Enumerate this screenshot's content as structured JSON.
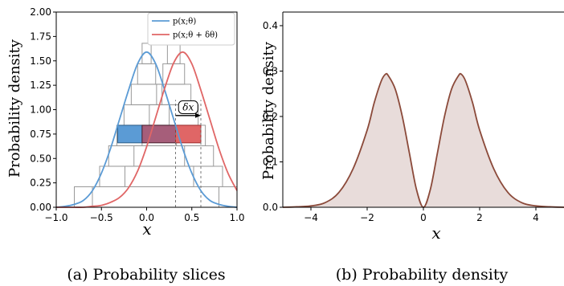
{
  "chart_data": [
    {
      "type": "line",
      "xlabel": "x",
      "ylabel": "Probability density",
      "xlim": [
        -1.0,
        1.0
      ],
      "ylim": [
        0.0,
        2.0
      ],
      "xticks": [
        "−1.0",
        "−0.5",
        "0.0",
        "0.5",
        "1.0"
      ],
      "yticks": [
        "0.00",
        "0.25",
        "0.50",
        "0.75",
        "1.00",
        "1.25",
        "1.50",
        "1.75",
        "2.00"
      ],
      "grid": false,
      "legend_position": "top-right",
      "series": [
        {
          "name": "p(x;θ)",
          "color": "#5b9bd5",
          "x": [
            -1.0,
            -0.9,
            -0.8,
            -0.7,
            -0.6,
            -0.5,
            -0.4,
            -0.3,
            -0.2,
            -0.1,
            0.0,
            0.1,
            0.2,
            0.3,
            0.4,
            0.5,
            0.6,
            0.7,
            0.8,
            0.9,
            1.0
          ],
          "y": [
            0.0,
            0.01,
            0.03,
            0.07,
            0.17,
            0.35,
            0.6,
            0.9,
            1.2,
            1.47,
            1.59,
            1.47,
            1.2,
            0.9,
            0.6,
            0.35,
            0.17,
            0.07,
            0.03,
            0.01,
            0.0
          ]
        },
        {
          "name": "p(x;θ + δθ)",
          "color": "#e06666",
          "x": [
            -1.0,
            -0.9,
            -0.8,
            -0.7,
            -0.6,
            -0.5,
            -0.4,
            -0.3,
            -0.2,
            -0.1,
            0.0,
            0.1,
            0.2,
            0.3,
            0.4,
            0.5,
            0.6,
            0.7,
            0.8,
            0.9,
            1.0
          ],
          "y": [
            0.0,
            0.0,
            0.0,
            0.0,
            0.01,
            0.02,
            0.05,
            0.1,
            0.2,
            0.37,
            0.62,
            0.92,
            1.22,
            1.48,
            1.59,
            1.47,
            1.2,
            0.9,
            0.6,
            0.35,
            0.17
          ]
        }
      ],
      "slices": [
        {
          "xmin": -0.8,
          "xmax": 0.8,
          "y0": 0.0,
          "y1": 0.21
        },
        {
          "xmin": -0.52,
          "xmax": 0.52,
          "y0": 0.21,
          "y1": 0.42
        },
        {
          "xmin": -0.42,
          "xmax": 0.42,
          "y0": 0.42,
          "y1": 0.63
        },
        {
          "xmin": -0.33,
          "xmax": 0.33,
          "y0": 0.63,
          "y1": 0.84
        },
        {
          "xmin": -0.25,
          "xmax": 0.25,
          "y0": 0.84,
          "y1": 1.05
        },
        {
          "xmin": -0.17,
          "xmax": 0.17,
          "y0": 1.05,
          "y1": 1.26
        },
        {
          "xmin": -0.1,
          "xmax": 0.1,
          "y0": 1.26,
          "y1": 1.47
        },
        {
          "xmin": -0.05,
          "xmax": 0.05,
          "y0": 1.47,
          "y1": 1.68
        },
        {
          "xmin": -0.6,
          "xmax": 1.0,
          "y0": 0.0,
          "y1": 0.21
        },
        {
          "xmin": -0.24,
          "xmax": 0.84,
          "y0": 0.21,
          "y1": 0.42
        },
        {
          "xmin": -0.14,
          "xmax": 0.74,
          "y0": 0.42,
          "y1": 0.63
        },
        {
          "xmin": -0.05,
          "xmax": 0.65,
          "y0": 0.63,
          "y1": 0.84
        },
        {
          "xmin": 0.03,
          "xmax": 0.57,
          "y0": 0.84,
          "y1": 1.05
        },
        {
          "xmin": 0.11,
          "xmax": 0.49,
          "y0": 1.05,
          "y1": 1.26
        },
        {
          "xmin": 0.18,
          "xmax": 0.42,
          "y0": 1.26,
          "y1": 1.47
        },
        {
          "xmin": 0.23,
          "xmax": 0.37,
          "y0": 1.47,
          "y1": 1.68
        }
      ],
      "highlight": {
        "y0": 0.66,
        "y1": 0.84,
        "blue": {
          "xmin": -0.32,
          "xmax": -0.05
        },
        "overlap": {
          "xmin": -0.05,
          "xmax": 0.32
        },
        "red": {
          "xmin": 0.32,
          "xmax": 0.6
        },
        "blue_color": "#5b9bd5",
        "overlap_color": "#a65e7a",
        "red_color": "#e06666"
      },
      "dashed_lines_x": [
        0.32,
        0.6
      ],
      "annotation": {
        "label": "δx",
        "x": 0.46,
        "y": 1.0,
        "arrow_from": 0.32,
        "arrow_to": 0.6,
        "arrow_y": 0.94
      }
    },
    {
      "type": "area",
      "xlabel": "x",
      "ylabel": "Probability density",
      "xlim": [
        -5.0,
        5.0
      ],
      "ylim": [
        0.0,
        0.43
      ],
      "xticks": [
        "−4",
        "−2",
        "0",
        "2",
        "4"
      ],
      "yticks": [
        "0.0",
        "0.1",
        "0.2",
        "0.3",
        "0.4"
      ],
      "grid": false,
      "line_color": "#8b4a3a",
      "fill_color": "#e8dcda",
      "x": [
        -5.0,
        -4.5,
        -4.0,
        -3.5,
        -3.0,
        -2.5,
        -2.0,
        -1.75,
        -1.5,
        -1.35,
        -1.25,
        -1.0,
        -0.75,
        -0.5,
        -0.25,
        0.0,
        0.25,
        0.5,
        0.75,
        1.0,
        1.25,
        1.35,
        1.5,
        1.75,
        2.0,
        2.5,
        3.0,
        3.5,
        4.0,
        4.5,
        5.0
      ],
      "y": [
        0.0,
        0.001,
        0.003,
        0.01,
        0.033,
        0.085,
        0.17,
        0.23,
        0.278,
        0.293,
        0.29,
        0.26,
        0.2,
        0.12,
        0.04,
        0.0,
        0.04,
        0.12,
        0.2,
        0.26,
        0.29,
        0.293,
        0.278,
        0.23,
        0.17,
        0.085,
        0.033,
        0.01,
        0.003,
        0.001,
        0.0
      ]
    }
  ],
  "captions": {
    "a": "(a) Probability slices",
    "b": "(b) Probability density"
  }
}
